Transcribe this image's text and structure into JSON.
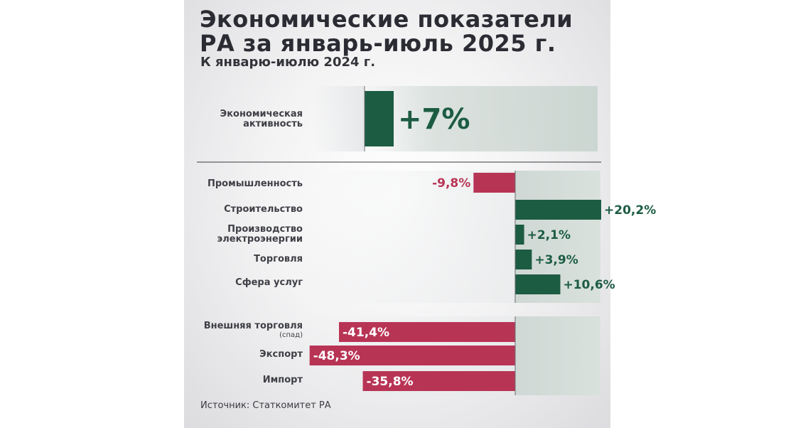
{
  "title": "Экономические показатели РА за январь-июль 2025 г.",
  "subtitle": "К январю-июлю 2024 г.",
  "source": "Источник: Статкомитет РА",
  "colors": {
    "positive": "#1c5c43",
    "negative": "#b83455",
    "panel": "#cfd8d4",
    "text": "#3f4046"
  },
  "chart_data": [
    {
      "type": "bar",
      "orientation": "horizontal",
      "categories": [
        "Экономическая активность"
      ],
      "values": [
        7
      ],
      "value_labels": [
        "+7%"
      ]
    },
    {
      "type": "bar",
      "orientation": "horizontal",
      "categories": [
        "Промышленность",
        "Строительство",
        "Производство электроэнергии",
        "Торговля",
        "Сфера услуг"
      ],
      "values": [
        -9.8,
        20.2,
        2.1,
        3.9,
        10.6
      ],
      "value_labels": [
        "-9,8%",
        "+20,2%",
        "+2,1%",
        "+3,9%",
        "+10,6%"
      ]
    },
    {
      "type": "bar",
      "orientation": "horizontal",
      "categories": [
        "Внешняя торговля",
        "Экспорт",
        "Импорт"
      ],
      "category_notes": [
        "(спад)",
        "",
        ""
      ],
      "values": [
        -41.4,
        -48.3,
        -35.8
      ],
      "value_labels": [
        "-41,4%",
        "-48,3%",
        "-35,8%"
      ]
    }
  ]
}
